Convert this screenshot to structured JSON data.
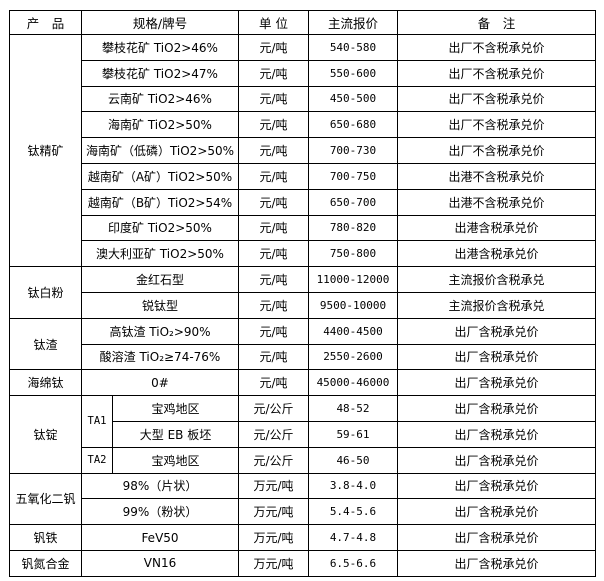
{
  "header": {
    "product": "产　品",
    "spec": "规格/牌号",
    "unit": "单 位",
    "price": "主流报价",
    "note": "备　注"
  },
  "groups": [
    {
      "product": "钛精矿",
      "rows": [
        {
          "spec": "攀枝花矿 TiO2>46%",
          "unit": "元/吨",
          "price": "540-580",
          "note": "出厂不含税承兑价"
        },
        {
          "spec": "攀枝花矿 TiO2>47%",
          "unit": "元/吨",
          "price": "550-600",
          "note": "出厂不含税承兑价"
        },
        {
          "spec": "云南矿 TiO2>46%",
          "unit": "元/吨",
          "price": "450-500",
          "note": "出厂不含税承兑价"
        },
        {
          "spec": "海南矿 TiO2>50%",
          "unit": "元/吨",
          "price": "650-680",
          "note": "出厂不含税承兑价"
        },
        {
          "spec": "海南矿（低磷）TiO2>50%",
          "unit": "元/吨",
          "price": "700-730",
          "note": "出厂不含税承兑价"
        },
        {
          "spec": "越南矿（A矿）TiO2>50%",
          "unit": "元/吨",
          "price": "700-750",
          "note": "出港不含税承兑价"
        },
        {
          "spec": "越南矿（B矿）TiO2>54%",
          "unit": "元/吨",
          "price": "650-700",
          "note": "出港不含税承兑价"
        },
        {
          "spec": "印度矿 TiO2>50%",
          "unit": "元/吨",
          "price": "780-820",
          "note": "出港含税承兑价"
        },
        {
          "spec": "澳大利亚矿 TiO2>50%",
          "unit": "元/吨",
          "price": "750-800",
          "note": "出港含税承兑价"
        }
      ]
    },
    {
      "product": "钛白粉",
      "rows": [
        {
          "spec": "金红石型",
          "unit": "元/吨",
          "price": "11000-12000",
          "note": "主流报价含税承兑"
        },
        {
          "spec": "锐钛型",
          "unit": "元/吨",
          "price": "9500-10000",
          "note": "主流报价含税承兑"
        }
      ]
    },
    {
      "product": "钛渣",
      "rows": [
        {
          "spec": "高钛渣 TiO₂>90%",
          "unit": "元/吨",
          "price": "4400-4500",
          "note": "出厂含税承兑价"
        },
        {
          "spec": "酸溶渣 TiO₂≥74-76%",
          "unit": "元/吨",
          "price": "2550-2600",
          "note": "出厂含税承兑价"
        }
      ]
    },
    {
      "product": "海绵钛",
      "rows": [
        {
          "spec": "0#",
          "unit": "元/吨",
          "price": "45000-46000",
          "note": "出厂含税承兑价"
        }
      ]
    },
    {
      "product": "钛锭",
      "rows": [
        {
          "grade": "TA1",
          "spec": "宝鸡地区",
          "unit": "元/公斤",
          "price": "48-52",
          "note": "出厂含税承兑价"
        },
        {
          "spec": "大型 EB 板坯",
          "unit": "元/公斤",
          "price": "59-61",
          "note": "出厂含税承兑价"
        },
        {
          "grade": "TA2",
          "spec": "宝鸡地区",
          "unit": "元/公斤",
          "price": "46-50",
          "note": "出厂含税承兑价"
        }
      ]
    },
    {
      "product": "五氧化二钒",
      "rows": [
        {
          "spec": "98%（片状）",
          "unit": "万元/吨",
          "price": "3.8-4.0",
          "note": "出厂含税承兑价"
        },
        {
          "spec": "99%（粉状）",
          "unit": "万元/吨",
          "price": "5.4-5.6",
          "note": "出厂含税承兑价"
        }
      ]
    },
    {
      "product": "钒铁",
      "rows": [
        {
          "spec": "FeV50",
          "unit": "万元/吨",
          "price": "4.7-4.8",
          "note": "出厂含税承兑价"
        }
      ]
    },
    {
      "product": "钒氮合金",
      "rows": [
        {
          "spec": "VN16",
          "unit": "万元/吨",
          "price": "6.5-6.6",
          "note": "出厂含税承兑价"
        }
      ]
    }
  ]
}
